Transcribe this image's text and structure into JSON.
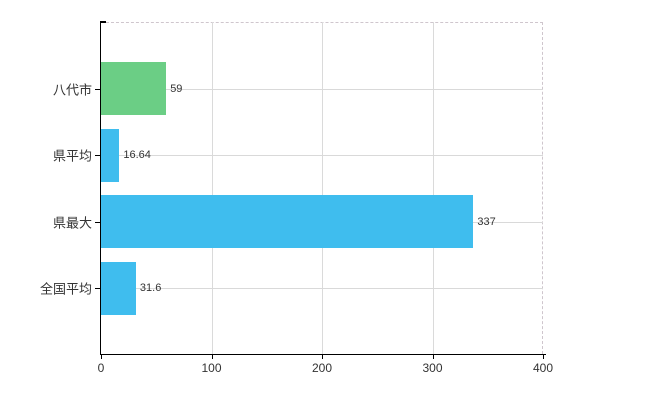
{
  "chart_data": {
    "type": "bar",
    "orientation": "horizontal",
    "categories": [
      "八代市",
      "県平均",
      "県最大",
      "全国平均"
    ],
    "values": [
      59,
      16.64,
      337,
      31.6
    ],
    "value_labels": [
      "59",
      "16.64",
      "337",
      "31.6"
    ],
    "bar_colors": [
      "#6bce85",
      "#3fbdee",
      "#3fbdee",
      "#3fbdee"
    ],
    "xlim": [
      0,
      400
    ],
    "xticks": [
      0,
      100,
      200,
      300,
      400
    ],
    "xtick_labels": [
      "0",
      "100",
      "200",
      "300",
      "400"
    ],
    "grid": true,
    "legend": false,
    "title": "",
    "xlabel": "",
    "ylabel": "",
    "styles": {
      "background": "#ffffff",
      "axis_color": "#000000",
      "grid_color": "#d9d9d9",
      "plot_border_dash_color": "#cfc6cd",
      "text_color": "#333333",
      "accent_green": "#6bce85",
      "accent_blue": "#3fbdee"
    }
  }
}
